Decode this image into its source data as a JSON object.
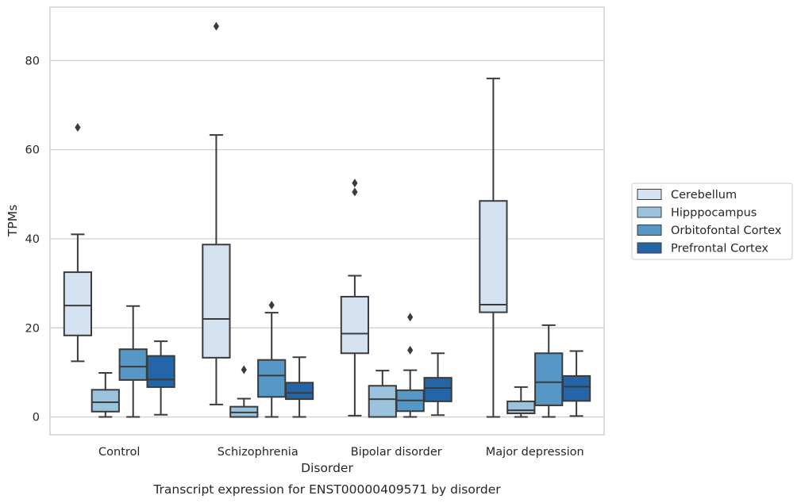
{
  "chart_data": {
    "type": "box",
    "caption": "Transcript expression for ENST00000409571 by disorder",
    "xlabel": "Disorder",
    "ylabel": "TPMs",
    "ylim": [
      -4,
      92
    ],
    "yticks": [
      0,
      20,
      40,
      60,
      80
    ],
    "grid": "horizontal",
    "legend_position": "right",
    "categories": [
      "Control",
      "Schizophrenia",
      "Bipolar disorder",
      "Major depression"
    ],
    "series": [
      {
        "name": "Cerebellum",
        "color": "#d4e2f2",
        "boxes": [
          {
            "whislo": 12.5,
            "q1": 18.3,
            "med": 25.0,
            "q3": 32.5,
            "whishi": 41.0,
            "fliers": [
              65.0
            ]
          },
          {
            "whislo": 2.8,
            "q1": 13.3,
            "med": 22.0,
            "q3": 38.7,
            "whishi": 63.3,
            "fliers": [
              87.7
            ]
          },
          {
            "whislo": 0.3,
            "q1": 14.3,
            "med": 18.7,
            "q3": 27.0,
            "whishi": 31.7,
            "fliers": [
              50.5,
              52.5
            ]
          },
          {
            "whislo": 0.0,
            "q1": 23.5,
            "med": 25.2,
            "q3": 48.5,
            "whishi": 76.0,
            "fliers": []
          }
        ]
      },
      {
        "name": "Hipppocampus",
        "color": "#9cc3dd",
        "boxes": [
          {
            "whislo": 0.0,
            "q1": 1.2,
            "med": 3.3,
            "q3": 6.1,
            "whishi": 9.9,
            "fliers": []
          },
          {
            "whislo": 0.0,
            "q1": 0.0,
            "med": 1.0,
            "q3": 2.3,
            "whishi": 4.1,
            "fliers": [
              10.6
            ]
          },
          {
            "whislo": 0.0,
            "q1": 0.0,
            "med": 4.0,
            "q3": 7.0,
            "whishi": 10.4,
            "fliers": []
          },
          {
            "whislo": 0.0,
            "q1": 0.8,
            "med": 1.5,
            "q3": 3.5,
            "whishi": 6.7,
            "fliers": []
          }
        ]
      },
      {
        "name": "Orbitofontal Cortex",
        "color": "#5697c6",
        "boxes": [
          {
            "whislo": 0.0,
            "q1": 8.3,
            "med": 11.3,
            "q3": 15.2,
            "whishi": 24.9,
            "fliers": []
          },
          {
            "whislo": 0.0,
            "q1": 4.5,
            "med": 9.3,
            "q3": 12.8,
            "whishi": 23.4,
            "fliers": [
              25.1
            ]
          },
          {
            "whislo": 0.0,
            "q1": 1.3,
            "med": 3.7,
            "q3": 6.0,
            "whishi": 10.5,
            "fliers": [
              15.0,
              22.4
            ]
          },
          {
            "whislo": 0.0,
            "q1": 2.6,
            "med": 7.8,
            "q3": 14.3,
            "whishi": 20.6,
            "fliers": []
          }
        ]
      },
      {
        "name": "Prefrontal Cortex",
        "color": "#2465a7",
        "boxes": [
          {
            "whislo": 0.5,
            "q1": 6.7,
            "med": 8.4,
            "q3": 13.7,
            "whishi": 17.0,
            "fliers": []
          },
          {
            "whislo": 0.0,
            "q1": 4.0,
            "med": 5.4,
            "q3": 7.7,
            "whishi": 13.4,
            "fliers": []
          },
          {
            "whislo": 0.4,
            "q1": 3.5,
            "med": 6.5,
            "q3": 8.8,
            "whishi": 14.3,
            "fliers": []
          },
          {
            "whislo": 0.2,
            "q1": 3.6,
            "med": 6.8,
            "q3": 9.2,
            "whishi": 14.8,
            "fliers": []
          }
        ]
      }
    ]
  }
}
